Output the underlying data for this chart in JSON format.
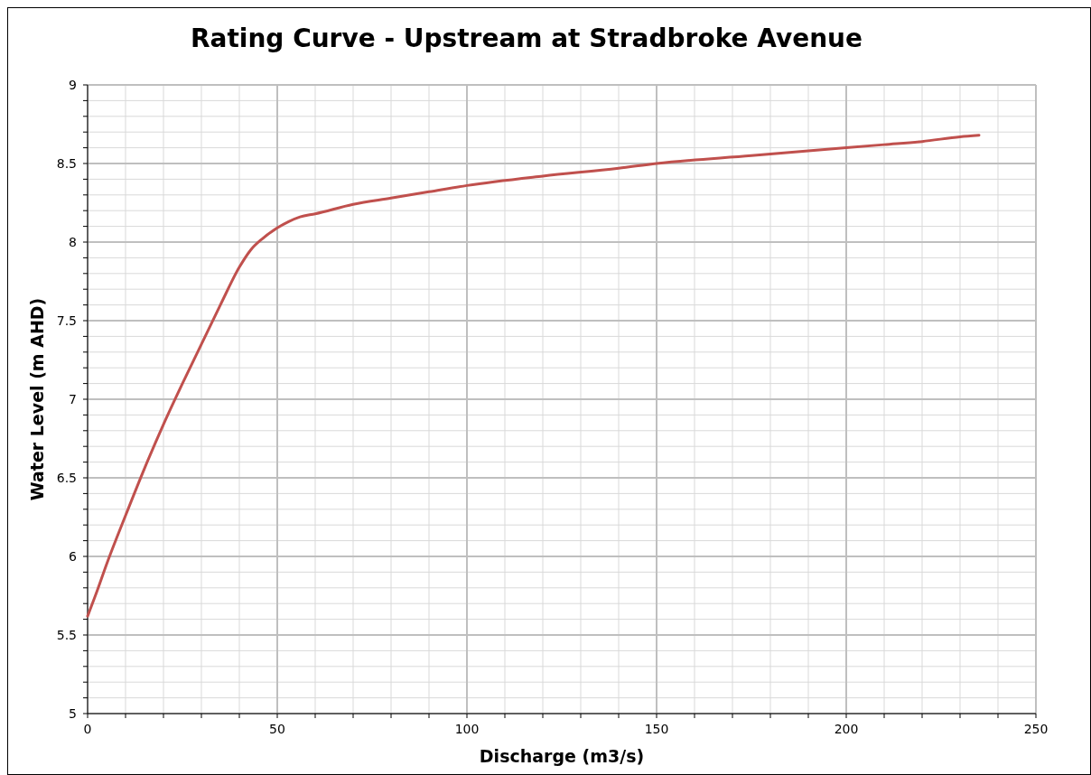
{
  "chart_data": {
    "type": "line",
    "title": "Rating Curve - Upstream at Stradbroke Avenue",
    "xlabel": "Discharge (m3/s)",
    "ylabel": "Water Level (m AHD)",
    "x": [
      0,
      2.5,
      5,
      10,
      15,
      20,
      25,
      30,
      35,
      40,
      43,
      46,
      50,
      53,
      56,
      60,
      70,
      80,
      90,
      100,
      120,
      140,
      150,
      175,
      200,
      210,
      220,
      230,
      235
    ],
    "series": [
      {
        "color": "#c0504d",
        "values": [
          5.62,
          5.78,
          5.95,
          6.26,
          6.56,
          6.84,
          7.1,
          7.35,
          7.6,
          7.84,
          7.95,
          8.02,
          8.09,
          8.13,
          8.16,
          8.18,
          8.24,
          8.28,
          8.32,
          8.36,
          8.42,
          8.47,
          8.5,
          8.55,
          8.6,
          8.62,
          8.64,
          8.67,
          8.68
        ]
      }
    ],
    "xlim": [
      0,
      250
    ],
    "xticks": [
      0,
      50,
      100,
      150,
      200,
      250
    ],
    "ylim": [
      5,
      9
    ],
    "yticks": [
      5,
      5.5,
      6,
      6.5,
      7,
      7.5,
      8,
      8.5,
      9
    ],
    "grid": true,
    "marker": "none",
    "line_style": "solid"
  }
}
